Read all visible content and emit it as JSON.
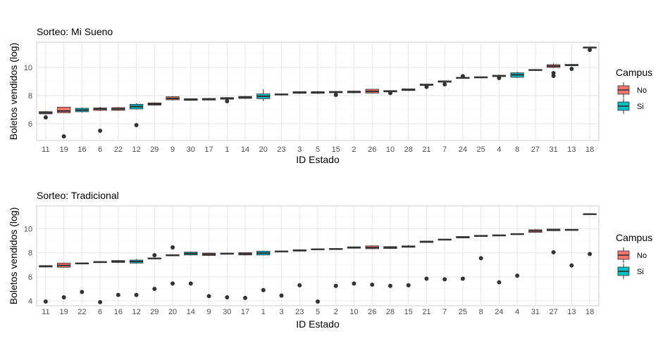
{
  "colors": {
    "no": "#F8766D",
    "si": "#00BFC4",
    "grid": "#e6e6e6",
    "panel_border": "#cccccc",
    "text": "#4d4d4d",
    "box_line": "#333333",
    "outlier": "#333333"
  },
  "chart_data": [
    {
      "type": "boxplot",
      "title": "Sorteo: Mi Sueno",
      "xlabel": "ID Estado",
      "ylabel": "Boletos vendidos (log)",
      "ylim": [
        4.8,
        11.8
      ],
      "yticks": [
        6,
        8,
        10
      ],
      "grid": true,
      "legend": {
        "title": "Campus",
        "placement": "right",
        "items": [
          {
            "label": "No",
            "key": "no"
          },
          {
            "label": "Si",
            "key": "si"
          }
        ]
      },
      "boxes": [
        {
          "id": "11",
          "campus": "no",
          "q1": 6.7,
          "median": 6.78,
          "q3": 6.86,
          "wlo": 6.65,
          "whi": 6.9,
          "outliers": [
            6.45
          ]
        },
        {
          "id": "19",
          "campus": "no",
          "q1": 6.78,
          "median": 6.9,
          "q3": 7.18,
          "wlo": 6.75,
          "whi": 7.2,
          "outliers": [
            5.1
          ]
        },
        {
          "id": "16",
          "campus": "si",
          "q1": 6.85,
          "median": 6.97,
          "q3": 7.1,
          "wlo": 6.8,
          "whi": 7.15,
          "outliers": []
        },
        {
          "id": "6",
          "campus": "no",
          "q1": 6.95,
          "median": 7.05,
          "q3": 7.12,
          "wlo": 6.9,
          "whi": 7.2,
          "outliers": [
            5.5
          ]
        },
        {
          "id": "22",
          "campus": "no",
          "q1": 6.95,
          "median": 7.05,
          "q3": 7.15,
          "wlo": 6.92,
          "whi": 7.18,
          "outliers": []
        },
        {
          "id": "12",
          "campus": "si",
          "q1": 7.05,
          "median": 7.22,
          "q3": 7.38,
          "wlo": 7.0,
          "whi": 7.45,
          "outliers": [
            5.9
          ]
        },
        {
          "id": "29",
          "campus": "no",
          "q1": 7.32,
          "median": 7.4,
          "q3": 7.48,
          "wlo": 7.28,
          "whi": 7.52,
          "outliers": []
        },
        {
          "id": "9",
          "campus": "no",
          "q1": 7.7,
          "median": 7.8,
          "q3": 7.92,
          "wlo": 7.65,
          "whi": 7.95,
          "outliers": []
        },
        {
          "id": "30",
          "campus": "no",
          "q1": 7.66,
          "median": 7.72,
          "q3": 7.78,
          "wlo": 7.63,
          "whi": 7.8,
          "outliers": []
        },
        {
          "id": "17",
          "campus": "no",
          "q1": 7.68,
          "median": 7.74,
          "q3": 7.8,
          "wlo": 7.65,
          "whi": 7.83,
          "outliers": []
        },
        {
          "id": "1",
          "campus": "no",
          "q1": 7.74,
          "median": 7.8,
          "q3": 7.86,
          "wlo": 7.7,
          "whi": 7.88,
          "outliers": [
            7.6
          ]
        },
        {
          "id": "14",
          "campus": "no",
          "q1": 7.8,
          "median": 7.87,
          "q3": 7.94,
          "wlo": 7.75,
          "whi": 7.97,
          "outliers": []
        },
        {
          "id": "20",
          "campus": "si",
          "q1": 7.78,
          "median": 7.95,
          "q3": 8.12,
          "wlo": 7.6,
          "whi": 8.45,
          "outliers": []
        },
        {
          "id": "23",
          "campus": "no",
          "q1": 8.04,
          "median": 8.08,
          "q3": 8.12,
          "wlo": 8.0,
          "whi": 8.15,
          "outliers": []
        },
        {
          "id": "3",
          "campus": "no",
          "q1": 8.16,
          "median": 8.22,
          "q3": 8.28,
          "wlo": 8.13,
          "whi": 8.3,
          "outliers": []
        },
        {
          "id": "5",
          "campus": "no",
          "q1": 8.16,
          "median": 8.22,
          "q3": 8.28,
          "wlo": 8.12,
          "whi": 8.34,
          "outliers": []
        },
        {
          "id": "15",
          "campus": "no",
          "q1": 8.2,
          "median": 8.25,
          "q3": 8.3,
          "wlo": 8.16,
          "whi": 8.32,
          "outliers": [
            8.05
          ]
        },
        {
          "id": "2",
          "campus": "no",
          "q1": 8.2,
          "median": 8.26,
          "q3": 8.32,
          "wlo": 8.16,
          "whi": 8.35,
          "outliers": []
        },
        {
          "id": "26",
          "campus": "no",
          "q1": 8.18,
          "median": 8.3,
          "q3": 8.45,
          "wlo": 8.15,
          "whi": 8.48,
          "outliers": []
        },
        {
          "id": "10",
          "campus": "no",
          "q1": 8.26,
          "median": 8.32,
          "q3": 8.36,
          "wlo": 8.22,
          "whi": 8.38,
          "outliers": [
            8.18
          ]
        },
        {
          "id": "28",
          "campus": "no",
          "q1": 8.36,
          "median": 8.42,
          "q3": 8.48,
          "wlo": 8.32,
          "whi": 8.5,
          "outliers": []
        },
        {
          "id": "21",
          "campus": "no",
          "q1": 8.72,
          "median": 8.77,
          "q3": 8.82,
          "wlo": 8.68,
          "whi": 8.85,
          "outliers": [
            8.62
          ]
        },
        {
          "id": "7",
          "campus": "no",
          "q1": 8.95,
          "median": 9.0,
          "q3": 9.05,
          "wlo": 8.92,
          "whi": 9.08,
          "outliers": [
            8.8
          ]
        },
        {
          "id": "24",
          "campus": "no",
          "q1": 9.22,
          "median": 9.26,
          "q3": 9.3,
          "wlo": 9.2,
          "whi": 9.35,
          "outliers": [
            9.38
          ]
        },
        {
          "id": "25",
          "campus": "no",
          "q1": 9.26,
          "median": 9.3,
          "q3": 9.34,
          "wlo": 9.23,
          "whi": 9.36,
          "outliers": []
        },
        {
          "id": "4",
          "campus": "no",
          "q1": 9.35,
          "median": 9.4,
          "q3": 9.45,
          "wlo": 9.32,
          "whi": 9.48,
          "outliers": [
            9.25
          ]
        },
        {
          "id": "8",
          "campus": "si",
          "q1": 9.3,
          "median": 9.48,
          "q3": 9.62,
          "wlo": 9.25,
          "whi": 9.7,
          "outliers": []
        },
        {
          "id": "27",
          "campus": "no",
          "q1": 9.78,
          "median": 9.82,
          "q3": 9.86,
          "wlo": 9.75,
          "whi": 9.88,
          "outliers": []
        },
        {
          "id": "31",
          "campus": "no",
          "q1": 10.0,
          "median": 10.1,
          "q3": 10.2,
          "wlo": 9.95,
          "whi": 10.3,
          "outliers": [
            9.6,
            9.4
          ]
        },
        {
          "id": "13",
          "campus": "no",
          "q1": 10.12,
          "median": 10.17,
          "q3": 10.22,
          "wlo": 10.08,
          "whi": 10.25,
          "outliers": [
            9.9
          ]
        },
        {
          "id": "18",
          "campus": "no",
          "q1": 11.38,
          "median": 11.42,
          "q3": 11.46,
          "wlo": 11.35,
          "whi": 11.48,
          "outliers": [
            11.25
          ]
        }
      ]
    },
    {
      "type": "boxplot",
      "title": "Sorteo: Tradicional",
      "xlabel": "ID Estado",
      "ylabel": "Boletos vendidos (log)",
      "ylim": [
        3.6,
        11.9
      ],
      "yticks": [
        4,
        6,
        8,
        10
      ],
      "grid": true,
      "legend": {
        "title": "Campus",
        "placement": "right",
        "items": [
          {
            "label": "No",
            "key": "no"
          },
          {
            "label": "Si",
            "key": "si"
          }
        ]
      },
      "boxes": [
        {
          "id": "11",
          "campus": "no",
          "q1": 6.82,
          "median": 6.88,
          "q3": 6.94,
          "wlo": 6.78,
          "whi": 6.97,
          "outliers": [
            3.95
          ]
        },
        {
          "id": "19",
          "campus": "no",
          "q1": 6.8,
          "median": 6.95,
          "q3": 7.15,
          "wlo": 6.75,
          "whi": 7.2,
          "outliers": [
            4.3
          ]
        },
        {
          "id": "22",
          "campus": "no",
          "q1": 7.08,
          "median": 7.12,
          "q3": 7.16,
          "wlo": 7.05,
          "whi": 7.18,
          "outliers": [
            4.75
          ]
        },
        {
          "id": "6",
          "campus": "no",
          "q1": 7.18,
          "median": 7.23,
          "q3": 7.28,
          "wlo": 7.15,
          "whi": 7.3,
          "outliers": [
            3.9
          ]
        },
        {
          "id": "16",
          "campus": "si",
          "q1": 7.2,
          "median": 7.28,
          "q3": 7.36,
          "wlo": 7.15,
          "whi": 7.4,
          "outliers": [
            4.5
          ]
        },
        {
          "id": "12",
          "campus": "si",
          "q1": 7.15,
          "median": 7.28,
          "q3": 7.4,
          "wlo": 7.1,
          "whi": 7.48,
          "outliers": [
            4.5
          ]
        },
        {
          "id": "29",
          "campus": "no",
          "q1": 7.5,
          "median": 7.54,
          "q3": 7.58,
          "wlo": 7.46,
          "whi": 7.6,
          "outliers": [
            7.8,
            5.0
          ]
        },
        {
          "id": "20",
          "campus": "si",
          "q1": 7.75,
          "median": 7.8,
          "q3": 7.85,
          "wlo": 7.72,
          "whi": 7.88,
          "outliers": [
            8.45,
            5.45
          ]
        },
        {
          "id": "14",
          "campus": "si",
          "q1": 7.82,
          "median": 7.94,
          "q3": 8.06,
          "wlo": 7.78,
          "whi": 8.1,
          "outliers": [
            5.45
          ]
        },
        {
          "id": "9",
          "campus": "no",
          "q1": 7.78,
          "median": 7.88,
          "q3": 7.98,
          "wlo": 7.74,
          "whi": 8.02,
          "outliers": [
            4.4
          ]
        },
        {
          "id": "30",
          "campus": "no",
          "q1": 7.88,
          "median": 7.93,
          "q3": 7.98,
          "wlo": 7.85,
          "whi": 8.0,
          "outliers": [
            4.3
          ]
        },
        {
          "id": "17",
          "campus": "no",
          "q1": 7.82,
          "median": 7.92,
          "q3": 8.02,
          "wlo": 7.78,
          "whi": 8.05,
          "outliers": [
            4.25
          ]
        },
        {
          "id": "1",
          "campus": "si",
          "q1": 7.82,
          "median": 7.98,
          "q3": 8.14,
          "wlo": 7.78,
          "whi": 8.18,
          "outliers": [
            4.9
          ]
        },
        {
          "id": "3",
          "campus": "no",
          "q1": 8.08,
          "median": 8.12,
          "q3": 8.16,
          "wlo": 8.05,
          "whi": 8.18,
          "outliers": [
            4.45
          ]
        },
        {
          "id": "23",
          "campus": "no",
          "q1": 8.14,
          "median": 8.2,
          "q3": 8.26,
          "wlo": 8.1,
          "whi": 8.28,
          "outliers": [
            5.3
          ]
        },
        {
          "id": "5",
          "campus": "no",
          "q1": 8.26,
          "median": 8.3,
          "q3": 8.34,
          "wlo": 8.24,
          "whi": 8.36,
          "outliers": [
            3.95
          ]
        },
        {
          "id": "2",
          "campus": "no",
          "q1": 8.28,
          "median": 8.32,
          "q3": 8.36,
          "wlo": 8.26,
          "whi": 8.38,
          "outliers": [
            5.25
          ]
        },
        {
          "id": "10",
          "campus": "no",
          "q1": 8.38,
          "median": 8.44,
          "q3": 8.5,
          "wlo": 8.35,
          "whi": 8.52,
          "outliers": [
            5.45
          ]
        },
        {
          "id": "26",
          "campus": "no",
          "q1": 8.34,
          "median": 8.44,
          "q3": 8.58,
          "wlo": 8.3,
          "whi": 8.62,
          "outliers": [
            5.35
          ]
        },
        {
          "id": "28",
          "campus": "no",
          "q1": 8.36,
          "median": 8.44,
          "q3": 8.52,
          "wlo": 8.32,
          "whi": 8.55,
          "outliers": [
            5.25
          ]
        },
        {
          "id": "15",
          "campus": "no",
          "q1": 8.46,
          "median": 8.52,
          "q3": 8.58,
          "wlo": 8.43,
          "whi": 8.65,
          "outliers": [
            5.3
          ]
        },
        {
          "id": "21",
          "campus": "no",
          "q1": 8.86,
          "median": 8.92,
          "q3": 8.98,
          "wlo": 8.83,
          "whi": 9.0,
          "outliers": [
            5.85
          ]
        },
        {
          "id": "7",
          "campus": "no",
          "q1": 9.06,
          "median": 9.1,
          "q3": 9.14,
          "wlo": 9.04,
          "whi": 9.16,
          "outliers": [
            5.8
          ]
        },
        {
          "id": "25",
          "campus": "no",
          "q1": 9.24,
          "median": 9.3,
          "q3": 9.36,
          "wlo": 9.22,
          "whi": 9.38,
          "outliers": [
            5.85
          ]
        },
        {
          "id": "8",
          "campus": "no",
          "q1": 9.36,
          "median": 9.41,
          "q3": 9.46,
          "wlo": 9.33,
          "whi": 9.48,
          "outliers": [
            7.55
          ]
        },
        {
          "id": "24",
          "campus": "no",
          "q1": 9.4,
          "median": 9.45,
          "q3": 9.5,
          "wlo": 9.37,
          "whi": 9.52,
          "outliers": [
            5.55
          ]
        },
        {
          "id": "4",
          "campus": "no",
          "q1": 9.52,
          "median": 9.56,
          "q3": 9.6,
          "wlo": 9.5,
          "whi": 9.62,
          "outliers": [
            6.1
          ]
        },
        {
          "id": "31",
          "campus": "no",
          "q1": 9.7,
          "median": 9.82,
          "q3": 9.92,
          "wlo": 9.66,
          "whi": 9.98,
          "outliers": []
        },
        {
          "id": "27",
          "campus": "no",
          "q1": 9.84,
          "median": 9.9,
          "q3": 9.98,
          "wlo": 9.8,
          "whi": 10.0,
          "outliers": [
            8.05
          ]
        },
        {
          "id": "13",
          "campus": "no",
          "q1": 9.86,
          "median": 9.91,
          "q3": 9.96,
          "wlo": 9.84,
          "whi": 9.98,
          "outliers": [
            6.95
          ]
        },
        {
          "id": "18",
          "campus": "no",
          "q1": 11.18,
          "median": 11.22,
          "q3": 11.26,
          "wlo": 11.16,
          "whi": 11.28,
          "outliers": [
            7.9
          ]
        }
      ]
    }
  ]
}
